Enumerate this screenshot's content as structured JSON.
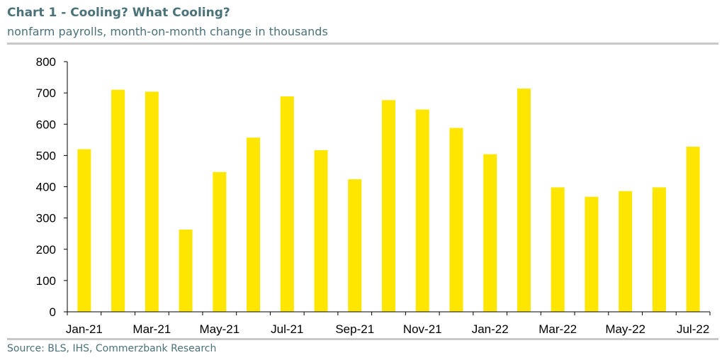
{
  "header": {
    "title": "Chart 1 - Cooling? What Cooling?",
    "subtitle": "nonfarm payrolls, month-on-month change in thousands"
  },
  "footer": {
    "source": "Source: BLS, IHS, Commerzbank Research"
  },
  "colors": {
    "bar": "#ffe600",
    "title": "#4a7278",
    "axis": "#000000",
    "rule": "#c8c8c8"
  },
  "chart_data": {
    "type": "bar",
    "title": "Chart 1 - Cooling? What Cooling?",
    "subtitle": "nonfarm payrolls, month-on-month change in thousands",
    "xlabel": "",
    "ylabel": "",
    "ylim": [
      0,
      800
    ],
    "yticks": [
      0,
      100,
      200,
      300,
      400,
      500,
      600,
      700,
      800
    ],
    "grid": false,
    "legend": "none",
    "categories": [
      "Jan-21",
      "Feb-21",
      "Mar-21",
      "Apr-21",
      "May-21",
      "Jun-21",
      "Jul-21",
      "Aug-21",
      "Sep-21",
      "Oct-21",
      "Nov-21",
      "Dec-21",
      "Jan-22",
      "Feb-22",
      "Mar-22",
      "Apr-22",
      "May-22",
      "Jun-22",
      "Jul-22"
    ],
    "tick_labels": [
      "Jan-21",
      "Mar-21",
      "May-21",
      "Jul-21",
      "Sep-21",
      "Nov-21",
      "Jan-22",
      "Mar-22",
      "May-22",
      "Jul-22"
    ],
    "values": [
      520,
      710,
      704,
      263,
      447,
      557,
      689,
      517,
      424,
      677,
      647,
      588,
      504,
      714,
      398,
      368,
      386,
      398,
      528
    ]
  }
}
